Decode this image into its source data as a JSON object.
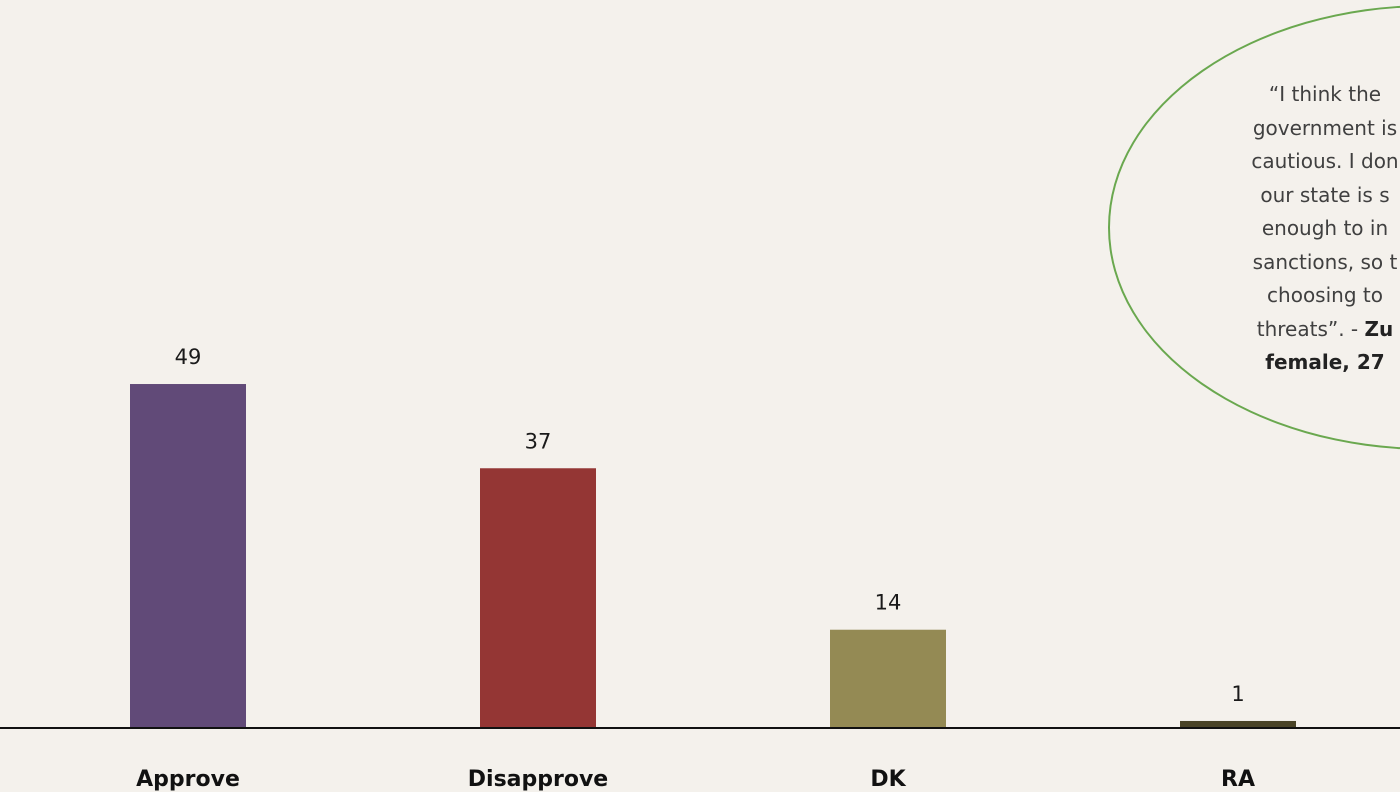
{
  "chart_data": {
    "type": "bar",
    "categories": [
      "Approve",
      "Disapprove",
      "DK",
      "RA"
    ],
    "values": [
      49,
      37,
      14,
      1
    ],
    "data_labels": [
      "49",
      "37",
      "14",
      "1"
    ],
    "colors": [
      "#614a78",
      "#943634",
      "#948a54",
      "#4a4427"
    ],
    "title": "",
    "xlabel": "",
    "ylabel": "",
    "ylim": [
      0,
      70
    ],
    "grid": false,
    "legend": "none"
  },
  "annotation": {
    "lines": [
      "“I think the",
      "government is",
      "cautious. I don",
      "our state is s",
      "enough to in",
      "sanctions, so t",
      "choosing to",
      "threats”. - "
    ],
    "attribution_inline": "Zu",
    "attribution_line": "female, 27",
    "border_color": "#6aa84f"
  }
}
